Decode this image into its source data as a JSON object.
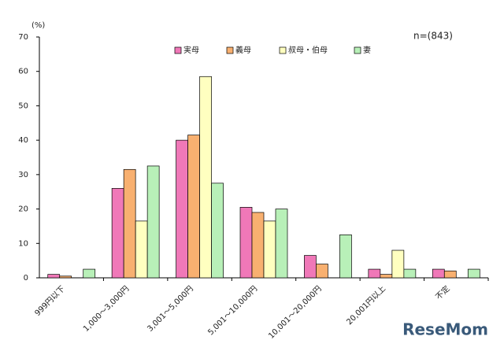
{
  "chart_data": {
    "type": "bar",
    "y_unit": "(%)",
    "annotation": "n=(843)",
    "watermark": "ReseMom",
    "categories": [
      "999円以下",
      "1,000～3,000円",
      "3,001～5,000円",
      "5,001～10,000円",
      "10,001～20,000円",
      "20,001円以上",
      "不定"
    ],
    "series": [
      {
        "name": "実母",
        "color": "#f078b8",
        "values": [
          1,
          26,
          40,
          20.5,
          6.5,
          2.5,
          2.5
        ]
      },
      {
        "name": "義母",
        "color": "#f8b070",
        "values": [
          0.5,
          31.5,
          41.5,
          19,
          4,
          1,
          2
        ]
      },
      {
        "name": "叔母・伯母",
        "color": "#ffffc0",
        "values": [
          0,
          16.5,
          58.5,
          16.5,
          0,
          8,
          0
        ]
      },
      {
        "name": "妻",
        "color": "#b8f0b8",
        "values": [
          2.5,
          32.5,
          27.5,
          20,
          12.5,
          2.5,
          2.5
        ]
      }
    ],
    "ylim": [
      0,
      70
    ],
    "yticks": [
      0,
      10,
      20,
      30,
      40,
      50,
      60,
      70
    ]
  }
}
